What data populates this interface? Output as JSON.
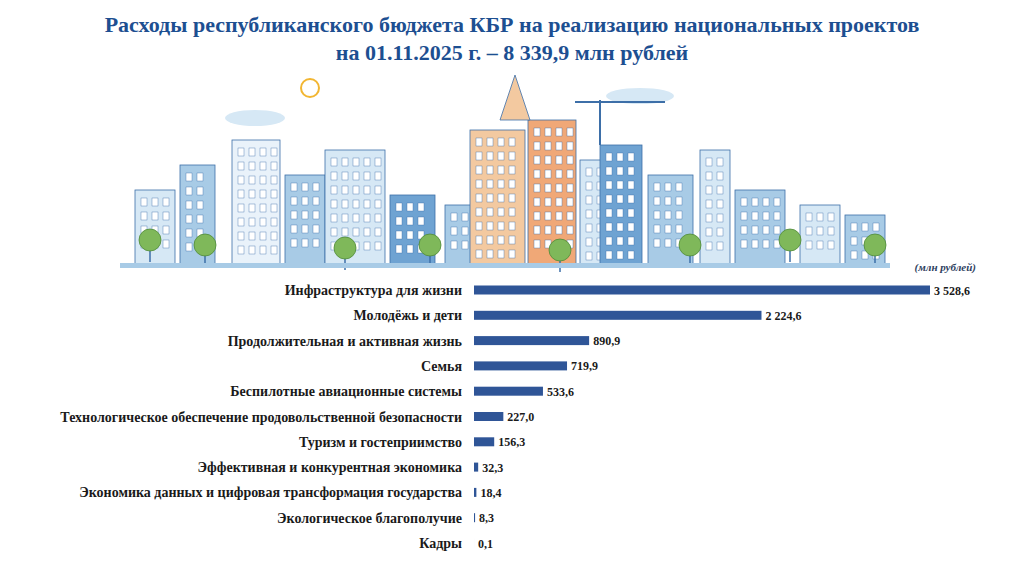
{
  "chart_data": {
    "type": "bar",
    "orientation": "horizontal",
    "title": "Расходы республиканского бюджета КБР на реализацию национальных проектов",
    "subtitle": "на 01.11.2025 г. – 8 339,9 млн рублей",
    "xlabel": "(млн рублей)",
    "categories": [
      "Инфраструктура  для жизни",
      "Молодёжь и дети",
      "Продолжительная и активная жизнь",
      "Семья",
      "Беспилотные авиационные системы",
      "Технологическое обеспечение продовольственной безопасности",
      "Туризм и гостеприимство",
      "Эффективная и конкурентная экономика",
      "Экономика данных и цифровая трансформация государства",
      "Экологическое благополучие",
      "Кадры"
    ],
    "values": [
      3528.6,
      2224.6,
      890.9,
      719.9,
      533.6,
      227.0,
      156.3,
      32.3,
      18.4,
      8.3,
      0.1
    ],
    "value_labels": [
      "3 528,6",
      "2 224,6",
      "890,9",
      "719,9",
      "533,6",
      "227,0",
      "156,3",
      "32,3",
      "18,4",
      "8,3",
      "0,1"
    ],
    "color": "#2f5597",
    "xlim": [
      0,
      3528.6
    ],
    "grid": false,
    "data_labels": true,
    "tick_labels": "y"
  }
}
